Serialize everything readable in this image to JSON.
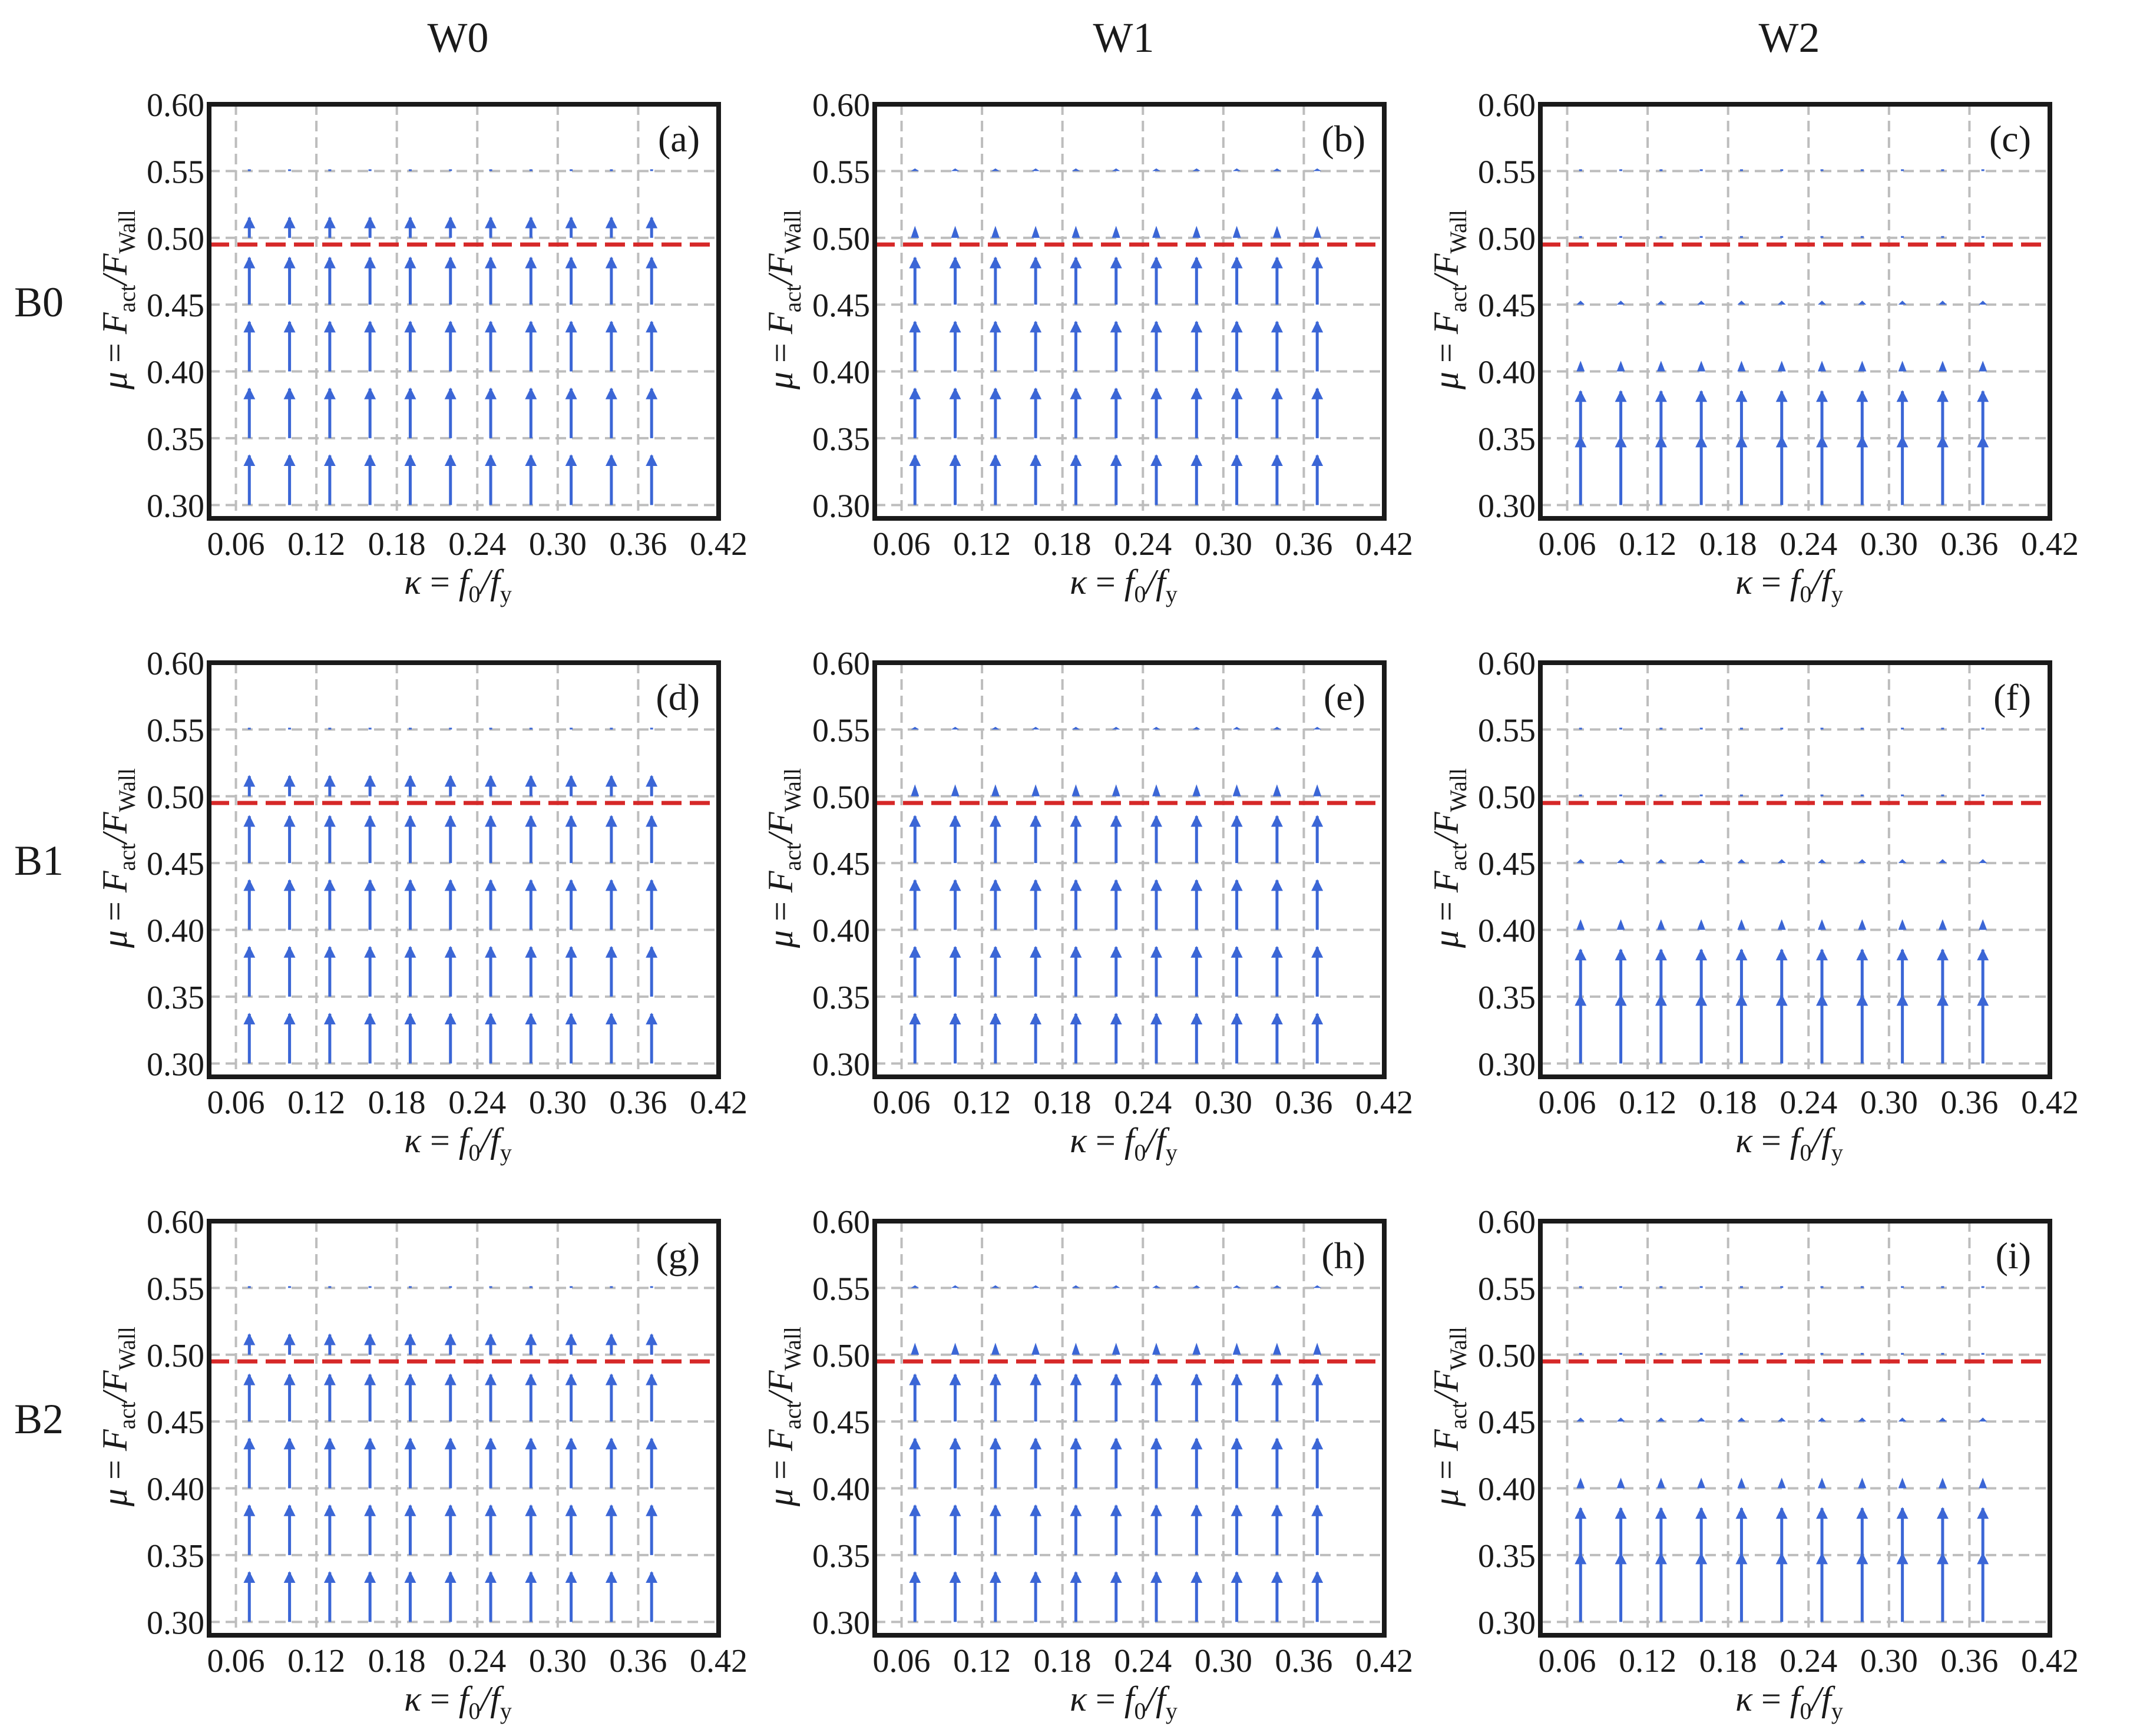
{
  "figure": {
    "column_headers": [
      "W0",
      "W1",
      "W2"
    ],
    "row_headers": [
      "B0",
      "B1",
      "B2"
    ]
  },
  "colors": {
    "arrow": "#3b66d6",
    "threshold": "#d62828",
    "grid": "#bdbdbd",
    "frame": "#1a1a1a"
  },
  "chart_data": [
    {
      "type": "quiver",
      "panel": "(a)",
      "column": "W0",
      "row": "B0",
      "xlabel": "κ = f0/fy",
      "ylabel": "μ = Fact/FWall",
      "xlim": [
        0.04,
        0.42
      ],
      "ylim": [
        0.29,
        0.6
      ],
      "xticks": [
        "0.06",
        "0.12",
        "0.18",
        "0.24",
        "0.30",
        "0.36",
        "0.42"
      ],
      "yticks": [
        "0.30",
        "0.35",
        "0.40",
        "0.45",
        "0.50",
        "0.55",
        "0.60"
      ],
      "threshold": 0.495,
      "arrow_x": [
        0.07,
        0.1,
        0.13,
        0.16,
        0.19,
        0.22,
        0.25,
        0.28,
        0.31,
        0.34,
        0.37
      ],
      "arrow_y": [
        0.3,
        0.35,
        0.4,
        0.45,
        0.5,
        0.55
      ],
      "arrow_len": [
        0.038,
        0.038,
        0.038,
        0.036,
        0.016,
        0.001
      ]
    },
    {
      "type": "quiver",
      "panel": "(b)",
      "column": "W1",
      "row": "B0",
      "xlabel": "κ = f0/fy",
      "ylabel": "μ = Fact/FWall",
      "xlim": [
        0.04,
        0.42
      ],
      "ylim": [
        0.29,
        0.6
      ],
      "xticks": [
        "0.06",
        "0.12",
        "0.18",
        "0.24",
        "0.30",
        "0.36",
        "0.42"
      ],
      "yticks": [
        "0.30",
        "0.35",
        "0.40",
        "0.45",
        "0.50",
        "0.55",
        "0.60"
      ],
      "threshold": 0.495,
      "arrow_x": [
        0.07,
        0.1,
        0.13,
        0.16,
        0.19,
        0.22,
        0.25,
        0.28,
        0.31,
        0.34,
        0.37
      ],
      "arrow_y": [
        0.3,
        0.35,
        0.4,
        0.45,
        0.5,
        0.55
      ],
      "arrow_len": [
        0.038,
        0.038,
        0.038,
        0.036,
        0.009,
        0.002
      ]
    },
    {
      "type": "quiver",
      "panel": "(c)",
      "column": "W2",
      "row": "B0",
      "xlabel": "κ = f0/fy",
      "ylabel": "μ = Fact/FWall",
      "xlim": [
        0.04,
        0.42
      ],
      "ylim": [
        0.29,
        0.6
      ],
      "xticks": [
        "0.06",
        "0.12",
        "0.18",
        "0.24",
        "0.30",
        "0.36",
        "0.42"
      ],
      "yticks": [
        "0.30",
        "0.35",
        "0.40",
        "0.45",
        "0.50",
        "0.55",
        "0.60"
      ],
      "threshold": 0.495,
      "arrow_x": [
        0.07,
        0.1,
        0.13,
        0.16,
        0.19,
        0.22,
        0.25,
        0.28,
        0.31,
        0.34,
        0.37
      ],
      "arrow_y": [
        0.3,
        0.35,
        0.4,
        0.45,
        0.5,
        0.55
      ],
      "arrow_len": [
        0.052,
        0.036,
        0.008,
        0.003,
        0.001,
        0.001
      ]
    },
    {
      "type": "quiver",
      "panel": "(d)",
      "column": "W0",
      "row": "B1",
      "xlabel": "κ = f0/fy",
      "ylabel": "μ = Fact/FWall",
      "xlim": [
        0.04,
        0.42
      ],
      "ylim": [
        0.29,
        0.6
      ],
      "xticks": [
        "0.06",
        "0.12",
        "0.18",
        "0.24",
        "0.30",
        "0.36",
        "0.42"
      ],
      "yticks": [
        "0.30",
        "0.35",
        "0.40",
        "0.45",
        "0.50",
        "0.55",
        "0.60"
      ],
      "threshold": 0.495,
      "arrow_x": [
        0.07,
        0.1,
        0.13,
        0.16,
        0.19,
        0.22,
        0.25,
        0.28,
        0.31,
        0.34,
        0.37
      ],
      "arrow_y": [
        0.3,
        0.35,
        0.4,
        0.45,
        0.5,
        0.55
      ],
      "arrow_len": [
        0.038,
        0.038,
        0.038,
        0.036,
        0.016,
        0.001
      ]
    },
    {
      "type": "quiver",
      "panel": "(e)",
      "column": "W1",
      "row": "B1",
      "xlabel": "κ = f0/fy",
      "ylabel": "μ = Fact/FWall",
      "xlim": [
        0.04,
        0.42
      ],
      "ylim": [
        0.29,
        0.6
      ],
      "xticks": [
        "0.06",
        "0.12",
        "0.18",
        "0.24",
        "0.30",
        "0.36",
        "0.42"
      ],
      "yticks": [
        "0.30",
        "0.35",
        "0.40",
        "0.45",
        "0.50",
        "0.55",
        "0.60"
      ],
      "threshold": 0.495,
      "arrow_x": [
        0.07,
        0.1,
        0.13,
        0.16,
        0.19,
        0.22,
        0.25,
        0.28,
        0.31,
        0.34,
        0.37
      ],
      "arrow_y": [
        0.3,
        0.35,
        0.4,
        0.45,
        0.5,
        0.55
      ],
      "arrow_len": [
        0.038,
        0.038,
        0.038,
        0.036,
        0.009,
        0.002
      ]
    },
    {
      "type": "quiver",
      "panel": "(f)",
      "column": "W2",
      "row": "B1",
      "xlabel": "κ = f0/fy",
      "ylabel": "μ = Fact/FWall",
      "xlim": [
        0.04,
        0.42
      ],
      "ylim": [
        0.29,
        0.6
      ],
      "xticks": [
        "0.06",
        "0.12",
        "0.18",
        "0.24",
        "0.30",
        "0.36",
        "0.42"
      ],
      "yticks": [
        "0.30",
        "0.35",
        "0.40",
        "0.45",
        "0.50",
        "0.55",
        "0.60"
      ],
      "threshold": 0.495,
      "arrow_x": [
        0.07,
        0.1,
        0.13,
        0.16,
        0.19,
        0.22,
        0.25,
        0.28,
        0.31,
        0.34,
        0.37
      ],
      "arrow_y": [
        0.3,
        0.35,
        0.4,
        0.45,
        0.5,
        0.55
      ],
      "arrow_len": [
        0.052,
        0.036,
        0.008,
        0.003,
        0.001,
        0.001
      ]
    },
    {
      "type": "quiver",
      "panel": "(g)",
      "column": "W0",
      "row": "B2",
      "xlabel": "κ = f0/fy",
      "ylabel": "μ = Fact/FWall",
      "xlim": [
        0.04,
        0.42
      ],
      "ylim": [
        0.29,
        0.6
      ],
      "xticks": [
        "0.06",
        "0.12",
        "0.18",
        "0.24",
        "0.30",
        "0.36",
        "0.42"
      ],
      "yticks": [
        "0.30",
        "0.35",
        "0.40",
        "0.45",
        "0.50",
        "0.55",
        "0.60"
      ],
      "threshold": 0.495,
      "arrow_x": [
        0.07,
        0.1,
        0.13,
        0.16,
        0.19,
        0.22,
        0.25,
        0.28,
        0.31,
        0.34,
        0.37
      ],
      "arrow_y": [
        0.3,
        0.35,
        0.4,
        0.45,
        0.5,
        0.55
      ],
      "arrow_len": [
        0.038,
        0.038,
        0.038,
        0.036,
        0.016,
        0.001
      ]
    },
    {
      "type": "quiver",
      "panel": "(h)",
      "column": "W1",
      "row": "B2",
      "xlabel": "κ = f0/fy",
      "ylabel": "μ = Fact/FWall",
      "xlim": [
        0.04,
        0.42
      ],
      "ylim": [
        0.29,
        0.6
      ],
      "xticks": [
        "0.06",
        "0.12",
        "0.18",
        "0.24",
        "0.30",
        "0.36",
        "0.42"
      ],
      "yticks": [
        "0.30",
        "0.35",
        "0.40",
        "0.45",
        "0.50",
        "0.55",
        "0.60"
      ],
      "threshold": 0.495,
      "arrow_x": [
        0.07,
        0.1,
        0.13,
        0.16,
        0.19,
        0.22,
        0.25,
        0.28,
        0.31,
        0.34,
        0.37
      ],
      "arrow_y": [
        0.3,
        0.35,
        0.4,
        0.45,
        0.5,
        0.55
      ],
      "arrow_len": [
        0.038,
        0.038,
        0.038,
        0.036,
        0.009,
        0.002
      ]
    },
    {
      "type": "quiver",
      "panel": "(i)",
      "column": "W2",
      "row": "B2",
      "xlabel": "κ = f0/fy",
      "ylabel": "μ = Fact/FWall",
      "xlim": [
        0.04,
        0.42
      ],
      "ylim": [
        0.29,
        0.6
      ],
      "xticks": [
        "0.06",
        "0.12",
        "0.18",
        "0.24",
        "0.30",
        "0.36",
        "0.42"
      ],
      "yticks": [
        "0.30",
        "0.35",
        "0.40",
        "0.45",
        "0.50",
        "0.55",
        "0.60"
      ],
      "threshold": 0.495,
      "arrow_x": [
        0.07,
        0.1,
        0.13,
        0.16,
        0.19,
        0.22,
        0.25,
        0.28,
        0.31,
        0.34,
        0.37
      ],
      "arrow_y": [
        0.3,
        0.35,
        0.4,
        0.45,
        0.5,
        0.55
      ],
      "arrow_len": [
        0.052,
        0.036,
        0.008,
        0.003,
        0.001,
        0.001
      ]
    }
  ]
}
